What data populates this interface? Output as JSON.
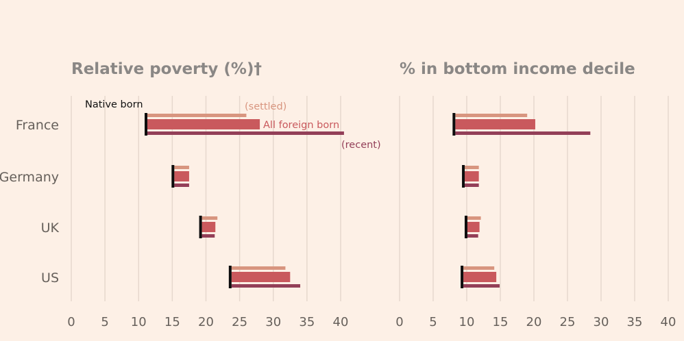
{
  "colors": {
    "background": "#fdf0e6",
    "gridline": "#e6d8cd",
    "native_born": "#0d0d0d",
    "settled": "#d8957f",
    "all_foreign_born": "#c9595d",
    "recent": "#933f58",
    "axis_text": "#66605b",
    "title_text": "#8a8785"
  },
  "chart_data": [
    {
      "type": "bar",
      "orientation": "horizontal",
      "title": "Relative poverty (%)†",
      "categories": [
        "France",
        "Germany",
        "UK",
        "US"
      ],
      "series": [
        {
          "name": "Native born",
          "marker": "vertical-line",
          "values": [
            11.3,
            15.3,
            19.4,
            23.8
          ]
        },
        {
          "name": "(settled)",
          "values": [
            26.0,
            17.5,
            21.7,
            31.8
          ]
        },
        {
          "name": "All foreign born",
          "values": [
            28.0,
            17.5,
            21.4,
            32.5
          ]
        },
        {
          "name": "(recent)",
          "values": [
            40.5,
            17.5,
            21.3,
            34.0
          ]
        }
      ],
      "xlim": [
        0,
        40
      ],
      "xticks": [
        "0",
        "5",
        "10",
        "15",
        "20",
        "25",
        "30",
        "35",
        "40"
      ],
      "grid": true
    },
    {
      "type": "bar",
      "orientation": "horizontal",
      "title": "% in bottom income decile",
      "categories": [
        "France",
        "Germany",
        "UK",
        "US"
      ],
      "series": [
        {
          "name": "Native born",
          "marker": "vertical-line",
          "values": [
            8.3,
            9.7,
            10.1,
            9.5
          ]
        },
        {
          "name": "(settled)",
          "values": [
            19.0,
            11.8,
            12.1,
            14.1
          ]
        },
        {
          "name": "All foreign born",
          "values": [
            20.2,
            11.8,
            11.9,
            14.4
          ]
        },
        {
          "name": "(recent)",
          "values": [
            28.4,
            11.8,
            11.7,
            14.9
          ]
        }
      ],
      "xlim": [
        0,
        40
      ],
      "xticks": [
        "0",
        "5",
        "10",
        "15",
        "20",
        "25",
        "30",
        "35",
        "40"
      ],
      "grid": true
    }
  ]
}
